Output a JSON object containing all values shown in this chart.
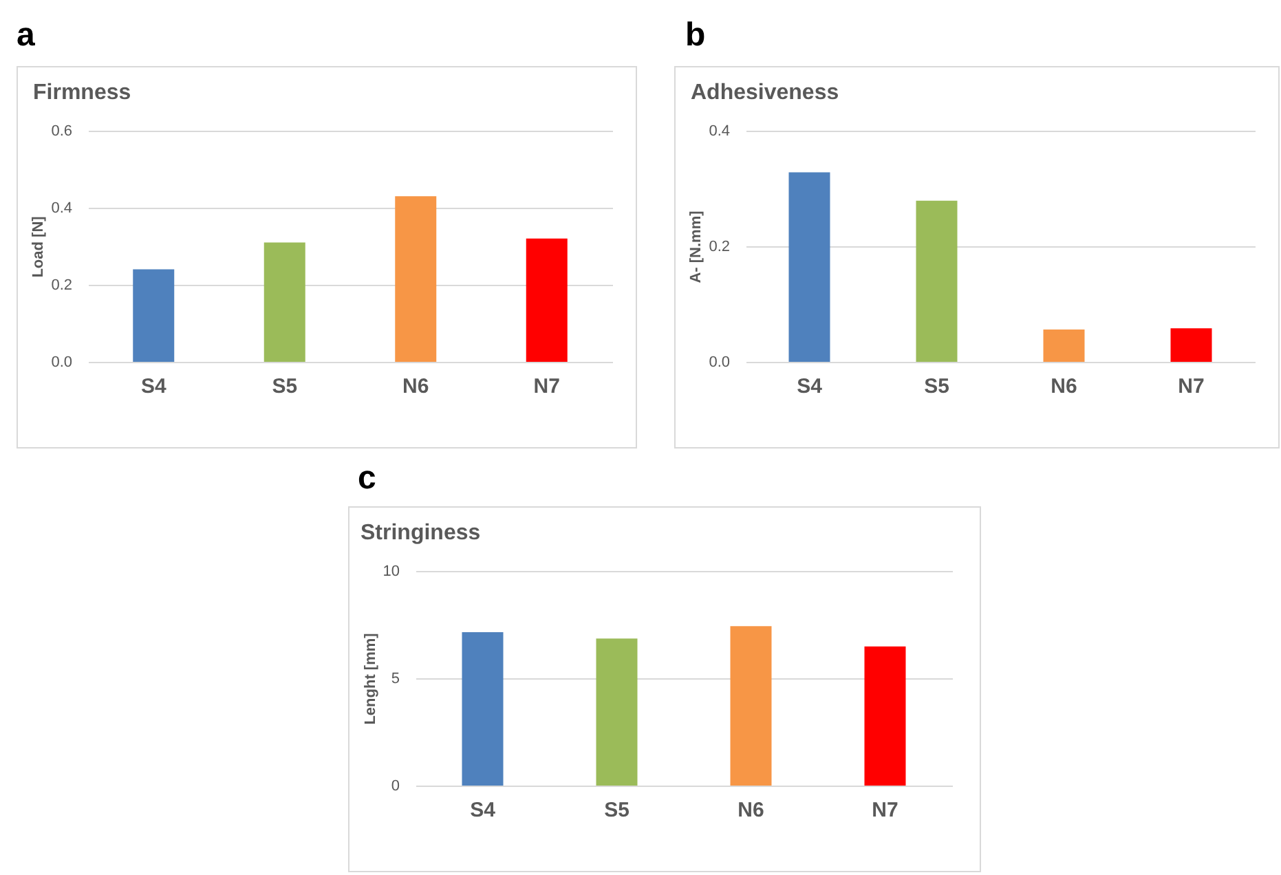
{
  "chart_data": [
    {
      "type": "bar",
      "title": "Firmness",
      "ylabel": "Load [N]",
      "annotations": [
        "a"
      ],
      "categories": [
        "S4",
        "S5",
        "N6",
        "N7"
      ],
      "colors": [
        "#4f81bd",
        "#9bbb59",
        "#f79646",
        "#ff0000"
      ],
      "values": [
        0.24,
        0.31,
        0.43,
        0.32
      ],
      "ylim": [
        0,
        0.6
      ],
      "yticks": [
        {
          "value": 0,
          "label": "0.0"
        },
        {
          "value": 0.2,
          "label": "0.2"
        },
        {
          "value": 0.4,
          "label": "0.4"
        },
        {
          "value": 0.6,
          "label": "0.6"
        }
      ],
      "grid": "y"
    },
    {
      "type": "bar",
      "title": "Adhesiveness",
      "ylabel": "A- [N.mm]",
      "annotations": [
        "b"
      ],
      "categories": [
        "S4",
        "S5",
        "N6",
        "N7"
      ],
      "colors": [
        "#4f81bd",
        "#9bbb59",
        "#f79646",
        "#ff0000"
      ],
      "values": [
        0.328,
        0.279,
        0.056,
        0.058
      ],
      "ylim": [
        0,
        0.4
      ],
      "yticks": [
        {
          "value": 0,
          "label": "0.0"
        },
        {
          "value": 0.2,
          "label": "0.2"
        },
        {
          "value": 0.4,
          "label": "0.4"
        }
      ],
      "grid": "y"
    },
    {
      "type": "bar",
      "title": "Stringiness",
      "ylabel": "Lenght [mm]",
      "annotations": [
        "c"
      ],
      "categories": [
        "S4",
        "S5",
        "N6",
        "N7"
      ],
      "colors": [
        "#4f81bd",
        "#9bbb59",
        "#f79646",
        "#ff0000"
      ],
      "values": [
        7.15,
        6.85,
        7.43,
        6.48
      ],
      "ylim": [
        0,
        10
      ],
      "yticks": [
        0,
        5,
        10
      ],
      "grid": "y"
    }
  ]
}
